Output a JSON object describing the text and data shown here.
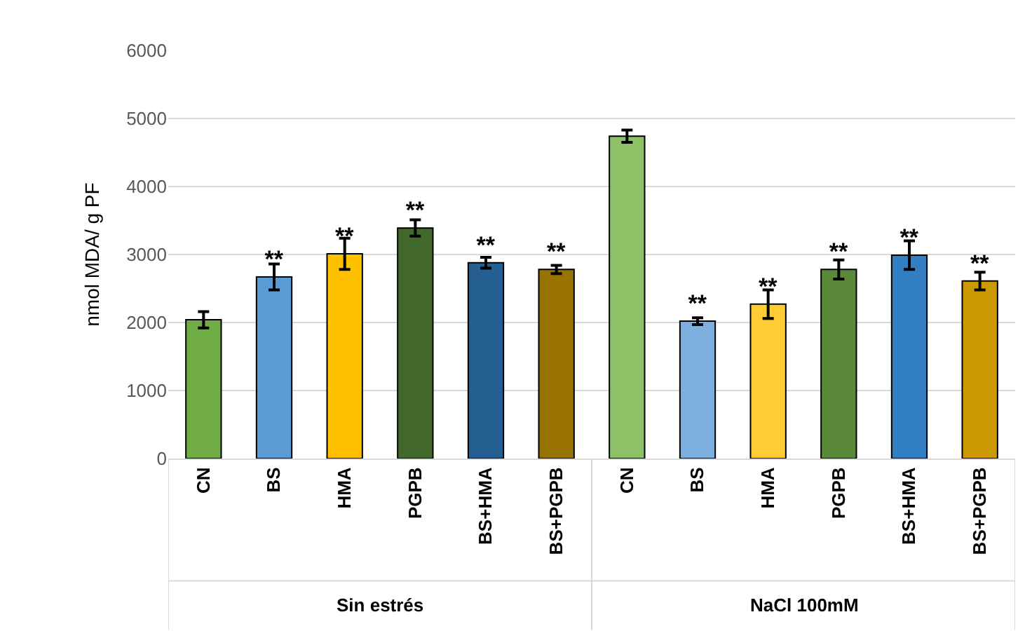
{
  "chart_data": {
    "type": "bar",
    "ylabel": "nmol MDA/ g PF",
    "categories": [
      "CN",
      "BS",
      "HMA",
      "PGPB",
      "BS+HMA",
      "BS+PGPB",
      "CN",
      "BS",
      "HMA",
      "PGPB",
      "BS+HMA",
      "BS+PGPB"
    ],
    "values": [
      2040,
      2670,
      3010,
      3390,
      2880,
      2780,
      4740,
      2020,
      2270,
      2780,
      2990,
      2610
    ],
    "errors": [
      120,
      190,
      230,
      120,
      80,
      60,
      90,
      50,
      210,
      140,
      210,
      130
    ],
    "value_labels": [
      null,
      "**",
      "**",
      "**",
      "**",
      "**",
      null,
      "**",
      "**",
      "**",
      "**",
      "**"
    ],
    "colors": [
      "#70ad47",
      "#5b9bd5",
      "#ffc000",
      "#43682b",
      "#255e91",
      "#997300",
      "#8cc168",
      "#7cafdd",
      "#ffcd33",
      "#5a8a39",
      "#327ec2",
      "#cc9a00"
    ],
    "ylim": [
      0,
      6000
    ],
    "yticks": [
      0,
      1000,
      2000,
      3000,
      4000,
      5000,
      6000
    ],
    "grid": "y",
    "annotations": [
      "Sin estrés",
      "NaCl 100mM"
    ]
  }
}
